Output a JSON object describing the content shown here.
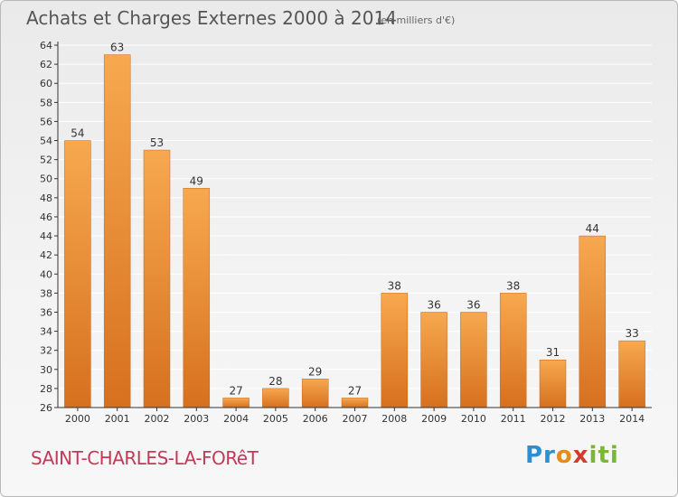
{
  "header": {
    "title": "Achats et Charges Externes 2000 à 2014",
    "unit": "(en milliers d'€)"
  },
  "footer": {
    "commune": "SAINT-CHARLES-LA-FORêT",
    "logo": "Proxiti"
  },
  "colors": {
    "bar_light": "#f7a94f",
    "bar_dark": "#d6701f",
    "axis": "#333333",
    "grid": "#ffffff",
    "title": "#555555",
    "commune": "#c23a57"
  },
  "chart_data": {
    "type": "bar",
    "title": "Achats et Charges Externes 2000 à 2014",
    "subtitle": "(en milliers d'€)",
    "xlabel": "",
    "ylabel": "",
    "categories": [
      "2000",
      "2001",
      "2002",
      "2003",
      "2004",
      "2005",
      "2006",
      "2007",
      "2008",
      "2009",
      "2010",
      "2011",
      "2012",
      "2013",
      "2014"
    ],
    "values": [
      54,
      63,
      53,
      49,
      27,
      28,
      29,
      27,
      38,
      36,
      36,
      38,
      31,
      44,
      33
    ],
    "ylim": [
      26,
      64
    ],
    "yticks": [
      26,
      28,
      30,
      32,
      34,
      36,
      38,
      40,
      42,
      44,
      46,
      48,
      50,
      52,
      54,
      56,
      58,
      60,
      62,
      64
    ],
    "grid": true,
    "legend": "none"
  }
}
